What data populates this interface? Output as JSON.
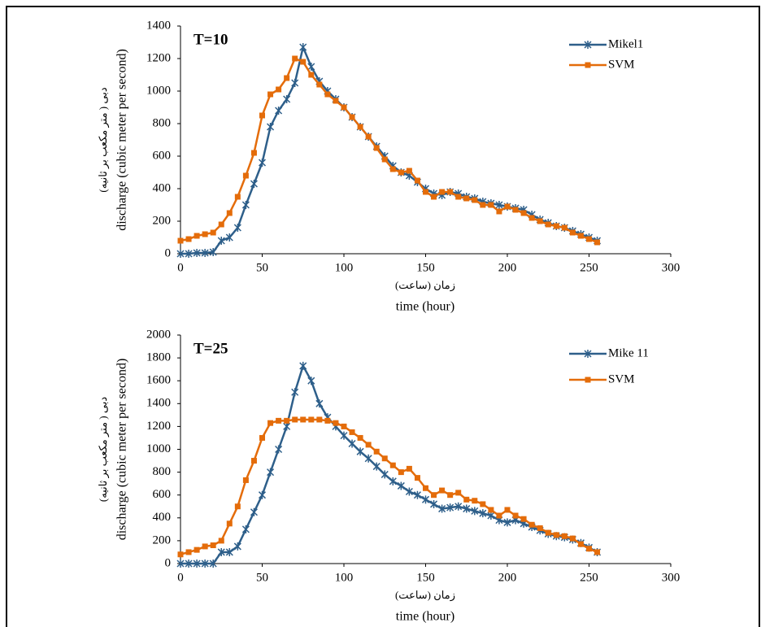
{
  "chart_data": [
    {
      "type": "line",
      "annotation": "T=10",
      "ylabel": "discharge (cubic meter per second)",
      "ylabel_fa": "دبی ( متر مکعب بر ثانیه)",
      "xlabel_fa": "زمان (ساعت)",
      "xlabel": "time (hour)",
      "xlim": [
        0,
        300
      ],
      "xticks": [
        0,
        50,
        100,
        150,
        200,
        250,
        300
      ],
      "ylim": [
        0,
        1400
      ],
      "yticks": [
        0,
        200,
        400,
        600,
        800,
        1000,
        1200,
        1400
      ],
      "legend": "top-right",
      "x": [
        0,
        5,
        10,
        15,
        20,
        25,
        30,
        35,
        40,
        45,
        50,
        55,
        60,
        65,
        70,
        75,
        80,
        85,
        90,
        95,
        100,
        105,
        110,
        115,
        120,
        125,
        130,
        135,
        140,
        145,
        150,
        155,
        160,
        165,
        170,
        175,
        180,
        185,
        190,
        195,
        200,
        205,
        210,
        215,
        220,
        225,
        230,
        235,
        240,
        245,
        250,
        255
      ],
      "series": [
        {
          "name": "Mikel1",
          "color": "#2e5f8a",
          "marker": "star",
          "values": [
            0,
            0,
            5,
            5,
            10,
            80,
            100,
            160,
            300,
            430,
            560,
            780,
            880,
            950,
            1050,
            1270,
            1150,
            1060,
            1000,
            950,
            900,
            840,
            780,
            720,
            660,
            600,
            540,
            500,
            480,
            440,
            400,
            370,
            360,
            380,
            370,
            350,
            340,
            320,
            310,
            300,
            290,
            280,
            270,
            240,
            210,
            190,
            170,
            160,
            140,
            120,
            100,
            80
          ]
        },
        {
          "name": "SVM",
          "color": "#e46c0a",
          "marker": "square",
          "values": [
            80,
            90,
            110,
            120,
            130,
            180,
            250,
            350,
            480,
            620,
            850,
            980,
            1010,
            1080,
            1200,
            1180,
            1100,
            1040,
            980,
            940,
            900,
            840,
            780,
            720,
            650,
            580,
            520,
            500,
            510,
            450,
            380,
            350,
            380,
            380,
            350,
            340,
            330,
            300,
            300,
            260,
            290,
            270,
            250,
            220,
            200,
            180,
            170,
            160,
            130,
            110,
            90,
            70
          ]
        }
      ]
    },
    {
      "type": "line",
      "annotation": "T=25",
      "ylabel": "discharge (cubic meter per second)",
      "ylabel_fa": "دبی ( متر مکعب بر ثانیه)",
      "xlabel_fa": "زمان (ساعت)",
      "xlabel": "time (hour)",
      "xlim": [
        0,
        300
      ],
      "xticks": [
        0,
        50,
        100,
        150,
        200,
        250,
        300
      ],
      "ylim": [
        0,
        2000
      ],
      "yticks": [
        0,
        200,
        400,
        600,
        800,
        1000,
        1200,
        1400,
        1600,
        1800,
        2000
      ],
      "legend": "top-right",
      "x": [
        0,
        5,
        10,
        15,
        20,
        25,
        30,
        35,
        40,
        45,
        50,
        55,
        60,
        65,
        70,
        75,
        80,
        85,
        90,
        95,
        100,
        105,
        110,
        115,
        120,
        125,
        130,
        135,
        140,
        145,
        150,
        155,
        160,
        165,
        170,
        175,
        180,
        185,
        190,
        195,
        200,
        205,
        210,
        215,
        220,
        225,
        230,
        235,
        240,
        245,
        250,
        255
      ],
      "series": [
        {
          "name": "Mike 11",
          "color": "#2e5f8a",
          "marker": "star",
          "values": [
            0,
            0,
            0,
            0,
            0,
            100,
            100,
            150,
            300,
            450,
            600,
            800,
            1000,
            1200,
            1500,
            1730,
            1600,
            1400,
            1280,
            1200,
            1120,
            1050,
            980,
            920,
            850,
            780,
            720,
            680,
            630,
            600,
            560,
            520,
            480,
            490,
            500,
            480,
            460,
            440,
            420,
            380,
            360,
            380,
            350,
            320,
            290,
            260,
            240,
            230,
            210,
            180,
            140,
            100
          ]
        },
        {
          "name": "SVM",
          "color": "#e46c0a",
          "marker": "square",
          "values": [
            80,
            100,
            120,
            150,
            160,
            200,
            350,
            500,
            730,
            900,
            1100,
            1230,
            1250,
            1250,
            1260,
            1260,
            1260,
            1260,
            1250,
            1230,
            1200,
            1150,
            1100,
            1040,
            980,
            920,
            860,
            800,
            830,
            750,
            660,
            600,
            640,
            600,
            620,
            560,
            550,
            520,
            470,
            420,
            470,
            420,
            390,
            340,
            310,
            270,
            250,
            240,
            220,
            170,
            130,
            100
          ]
        }
      ]
    }
  ]
}
